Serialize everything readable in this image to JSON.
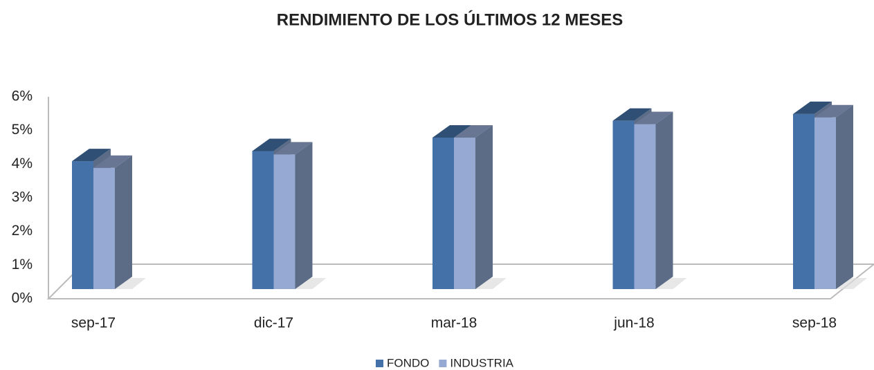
{
  "chart_data": {
    "type": "bar3d",
    "title": "RENDIMIENTO DE LOS ÚLTIMOS 12 MESES",
    "categories": [
      "sep-17",
      "dic-17",
      "mar-18",
      "jun-18",
      "sep-18"
    ],
    "series": [
      {
        "name": "FONDO",
        "color": "#4472a8",
        "values": [
          3.8,
          4.1,
          4.5,
          5.0,
          5.2
        ]
      },
      {
        "name": "INDUSTRIA",
        "color": "#95a9d3",
        "values": [
          3.6,
          4.0,
          4.5,
          4.9,
          5.1
        ]
      }
    ],
    "ylim": [
      0,
      6
    ],
    "yticks": [
      {
        "value": 0,
        "label": "0%"
      },
      {
        "value": 1,
        "label": "1%"
      },
      {
        "value": 2,
        "label": "2%"
      },
      {
        "value": 3,
        "label": "3%"
      },
      {
        "value": 4,
        "label": "4%"
      },
      {
        "value": 5,
        "label": "5%"
      },
      {
        "value": 6,
        "label": "6%"
      }
    ],
    "legend": "bottom"
  }
}
